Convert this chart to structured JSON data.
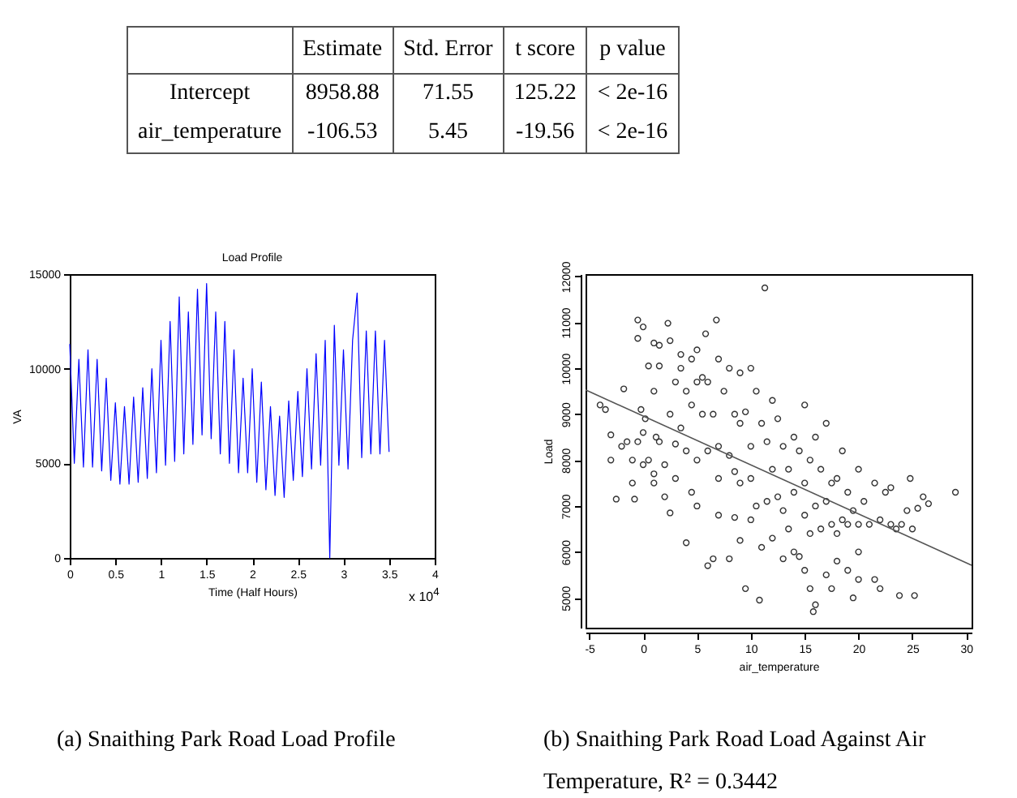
{
  "chart_data": [
    {
      "type": "other",
      "annotations": [
        "Estimate",
        "Std. Error",
        "t score",
        "p value",
        "Intercept",
        "8958.88",
        "71.55",
        "125.22",
        "< 2e-16",
        "air_temperature",
        "-106.53",
        "5.45",
        "-19.56",
        "< 2e-16"
      ]
    },
    {
      "type": "line",
      "title": "Load Profile",
      "xlabel": "Time (Half Hours)",
      "ylabel": "VA",
      "xlim": [
        0,
        4
      ],
      "xticks": [
        0,
        0.5,
        1,
        1.5,
        2,
        2.5,
        3,
        3.5,
        4
      ],
      "ylim": [
        0,
        15000
      ],
      "yticks": [
        0,
        5000,
        10000,
        15000
      ],
      "grid": false,
      "annotations": [
        "x 10$^{4}$",
        "(a) Snaithing Park Road Load Profile"
      ],
      "series": [
        {
          "color": "#0000ff",
          "x": [
            0,
            0.05,
            0.1,
            0.15,
            0.2,
            0.25,
            0.3,
            0.35,
            0.4,
            0.45,
            0.5,
            0.55,
            0.6,
            0.65,
            0.7,
            0.75,
            0.8,
            0.85,
            0.9,
            0.95,
            1,
            1.05,
            1.1,
            1.15,
            1.2,
            1.25,
            1.3,
            1.35,
            1.4,
            1.45,
            1.5,
            1.55,
            1.6,
            1.65,
            1.7,
            1.75,
            1.8,
            1.85,
            1.9,
            1.95,
            2,
            2.05,
            2.1,
            2.15,
            2.2,
            2.25,
            2.3,
            2.35,
            2.4,
            2.45,
            2.5,
            2.55,
            2.6,
            2.65,
            2.7,
            2.75,
            2.8,
            2.85,
            2.9,
            2.95,
            3,
            3.05,
            3.1,
            3.15,
            3.2,
            3.25,
            3.3,
            3.35,
            3.4,
            3.45,
            3.5
          ],
          "values": [
            11300,
            5000,
            10500,
            4800,
            11000,
            4800,
            10500,
            4600,
            9500,
            4100,
            8200,
            3900,
            8000,
            3900,
            8500,
            4000,
            9000,
            4200,
            10000,
            4500,
            11500,
            4900,
            12500,
            5100,
            13800,
            5500,
            13000,
            6000,
            14200,
            6500,
            14500,
            6300,
            13000,
            5500,
            12500,
            5000,
            11000,
            4500,
            9500,
            4500,
            10000,
            4000,
            9300,
            3600,
            8000,
            3300,
            7500,
            3200,
            8300,
            4100,
            8800,
            4300,
            10000,
            4700,
            10800,
            4900,
            11500,
            0,
            12300,
            4900,
            11000,
            4700,
            11500,
            14000,
            5300,
            12000,
            5500,
            12000,
            5500,
            11500,
            5600
          ]
        }
      ]
    },
    {
      "type": "scatter",
      "xlabel": "air_temperature",
      "ylabel": "Load",
      "xlim": [
        -5.35,
        30.5
      ],
      "xticks": [
        -5,
        0,
        5,
        10,
        15,
        20,
        25,
        30
      ],
      "ylim": [
        4350,
        12050
      ],
      "yticks": [
        5000,
        6000,
        7000,
        8000,
        9000,
        10000,
        11000,
        12000
      ],
      "grid": false,
      "marker": "circle",
      "annotations": [
        "(b) Snaithing Park Road Load Against Air Temperature, R² = 0.3442"
      ],
      "series": [
        {
          "color": "#333333",
          "x": [
            -4,
            -3.5,
            -3,
            -3,
            -2.5,
            -2,
            -1.8,
            -1.5,
            -1,
            -1,
            -0.8,
            -0.5,
            -0.5,
            -0.5,
            -0.2,
            0,
            0,
            0,
            0.2,
            0.5,
            0.5,
            1,
            1,
            1,
            1,
            1.2,
            1.5,
            1.5,
            1.5,
            2,
            2,
            2.3,
            2.5,
            2.5,
            2.5,
            3,
            3,
            3,
            3.5,
            3.5,
            3.5,
            4,
            4,
            4,
            4.5,
            4.5,
            4.5,
            5,
            5,
            5,
            5,
            5.5,
            5.5,
            5.8,
            6,
            6,
            6,
            6.5,
            6.5,
            6.8,
            7,
            7,
            7,
            7,
            7.5,
            8,
            8,
            8,
            8.5,
            8.5,
            8.5,
            9,
            9,
            9,
            9,
            9.5,
            9.5,
            10,
            10,
            10,
            10,
            10.5,
            10.5,
            10.8,
            11,
            11,
            11.3,
            11.5,
            11.5,
            12,
            12,
            12,
            12.5,
            12.5,
            13,
            13,
            13,
            13.5,
            13.5,
            14,
            14,
            14,
            14.5,
            14.5,
            15,
            15,
            15,
            15,
            15.5,
            15.5,
            15.5,
            15.8,
            16,
            16,
            16,
            16.5,
            16.5,
            17,
            17,
            17,
            17.5,
            17.5,
            17.5,
            18,
            18,
            18,
            18.5,
            18.5,
            19,
            19,
            19,
            19.5,
            19.5,
            20,
            20,
            20,
            20,
            20.5,
            21,
            21.5,
            21.5,
            22,
            22,
            22.5,
            23,
            23,
            23.5,
            24,
            23.8,
            24.5,
            24.8,
            25,
            25.2,
            25.5,
            26,
            26.5,
            29
          ],
          "values": [
            9200,
            9100,
            8550,
            8000,
            7150,
            8300,
            9550,
            8400,
            7500,
            8000,
            7150,
            8400,
            10650,
            11050,
            9100,
            10900,
            8600,
            7900,
            8900,
            10050,
            8000,
            10550,
            9500,
            7500,
            7700,
            8500,
            10500,
            10050,
            8400,
            7200,
            7900,
            10980,
            10600,
            9000,
            6850,
            9700,
            8350,
            7600,
            10300,
            10000,
            8700,
            9500,
            8200,
            6200,
            10200,
            9200,
            7300,
            10400,
            9700,
            8000,
            7000,
            9800,
            9000,
            10750,
            9700,
            8200,
            5700,
            9000,
            5850,
            11050,
            10200,
            8300,
            7600,
            6800,
            9500,
            10000,
            8100,
            5850,
            9000,
            7750,
            6750,
            9900,
            8800,
            7500,
            6250,
            9050,
            5200,
            10000,
            8300,
            7600,
            6700,
            9500,
            7000,
            4950,
            8800,
            6100,
            11750,
            8400,
            7100,
            9300,
            7800,
            6300,
            8900,
            7200,
            8300,
            6900,
            5850,
            7800,
            6500,
            8500,
            7300,
            6000,
            8200,
            5900,
            9200,
            7500,
            6800,
            5600,
            8000,
            6400,
            5200,
            4700,
            8500,
            7000,
            4850,
            7800,
            6500,
            8800,
            7100,
            5500,
            7500,
            6600,
            5200,
            7600,
            6400,
            5800,
            8200,
            6700,
            7300,
            6600,
            5600,
            6900,
            5000,
            7800,
            6600,
            6000,
            5400,
            7100,
            6600,
            7500,
            5400,
            6700,
            5200,
            7300,
            6600,
            7400,
            6500,
            6600,
            5050,
            6900,
            7600,
            6500,
            5050,
            6950,
            7200,
            7050,
            7300
          ]
        },
        {
          "type": "line",
          "color": "#555555",
          "marker": "none",
          "x": [
            -5.35,
            30.5
          ],
          "values": [
            9530,
            5710
          ]
        }
      ]
    }
  ]
}
